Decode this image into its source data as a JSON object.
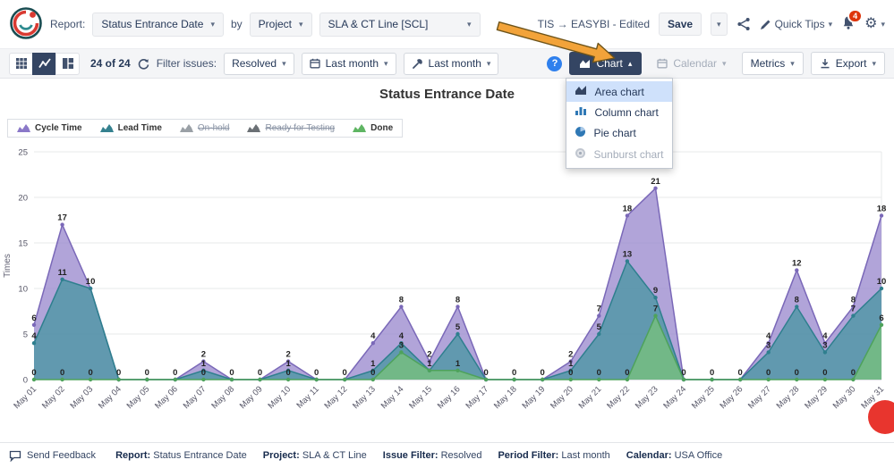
{
  "header": {
    "report_label": "Report:",
    "report_value": "Status Entrance Date",
    "by_label": "by",
    "dimension_value": "Project",
    "project_value": "SLA & CT Line [SCL]",
    "workspace_title": "TIS → EASYBI - Edited",
    "save_label": "Save",
    "quick_tips_label": "Quick Tips",
    "notification_count": "4"
  },
  "toolbar": {
    "issues_count": "24 of 24",
    "filter_label": "Filter issues:",
    "filter_value": "Resolved",
    "period_value": "Last month",
    "time_value": "Last month",
    "help_label": "?",
    "chart_label": "Chart",
    "calendar_label": "Calendar",
    "metrics_label": "Metrics",
    "export_label": "Export"
  },
  "chart_menu": {
    "items": [
      {
        "label": "Area chart",
        "icon": "area-chart-icon",
        "selected": true,
        "disabled": false
      },
      {
        "label": "Column chart",
        "icon": "column-chart-icon",
        "selected": false,
        "disabled": false
      },
      {
        "label": "Pie chart",
        "icon": "pie-chart-icon",
        "selected": false,
        "disabled": false
      },
      {
        "label": "Sunburst chart",
        "icon": "sunburst-chart-icon",
        "selected": false,
        "disabled": true
      }
    ]
  },
  "legend": {
    "items": [
      {
        "label": "Cycle Time",
        "color": "#8a78c8",
        "active": true
      },
      {
        "label": "Lead Time",
        "color": "#35818f",
        "active": true
      },
      {
        "label": "On-hold",
        "color": "#9aa0a6",
        "active": false
      },
      {
        "label": "Ready for Testing",
        "color": "#6b7075",
        "active": false
      },
      {
        "label": "Done",
        "color": "#5fb563",
        "active": true
      }
    ]
  },
  "chart_data": {
    "type": "area",
    "title": "Status Entrance Date",
    "xlabel": "",
    "ylabel": "Times",
    "ylim": [
      0,
      25
    ],
    "yticks": [
      0,
      5,
      10,
      15,
      20,
      25
    ],
    "grid": true,
    "legend_position": "top-left",
    "categories": [
      "May 01",
      "May 02",
      "May 03",
      "May 04",
      "May 05",
      "May 06",
      "May 07",
      "May 08",
      "May 09",
      "May 10",
      "May 11",
      "May 12",
      "May 13",
      "May 14",
      "May 15",
      "May 16",
      "May 17",
      "May 18",
      "May 19",
      "May 20",
      "May 21",
      "May 22",
      "May 23",
      "May 24",
      "May 25",
      "May 26",
      "May 27",
      "May 28",
      "May 29",
      "May 30",
      "May 31"
    ],
    "series": [
      {
        "name": "Cycle Time",
        "line": "#7a68b8",
        "fill": "#9b8ace",
        "values": [
          6,
          17,
          10,
          0,
          0,
          0,
          2,
          0,
          0,
          2,
          0,
          0,
          4,
          8,
          2,
          8,
          0,
          0,
          0,
          2,
          7,
          18,
          21,
          0,
          0,
          0,
          4,
          12,
          4,
          8,
          18
        ]
      },
      {
        "name": "Lead Time",
        "line": "#2e7f8e",
        "fill": "#4a96a3",
        "values": [
          4,
          11,
          10,
          0,
          0,
          0,
          1,
          0,
          0,
          1,
          0,
          0,
          1,
          4,
          1,
          5,
          0,
          0,
          0,
          1,
          5,
          13,
          9,
          0,
          0,
          0,
          3,
          8,
          3,
          7,
          10
        ]
      },
      {
        "name": "Done",
        "line": "#4ea25b",
        "fill": "#77c07c",
        "values": [
          0,
          0,
          0,
          0,
          0,
          0,
          0,
          0,
          0,
          0,
          0,
          0,
          0,
          3,
          1,
          1,
          0,
          0,
          0,
          0,
          0,
          0,
          7,
          0,
          0,
          0,
          0,
          0,
          0,
          0,
          6
        ]
      }
    ]
  },
  "annotation": {
    "type": "arrow",
    "color": "#f2a33a"
  },
  "footer": {
    "feedback_label": "Send Feedback",
    "items": [
      {
        "label": "Report:",
        "value": "Status Entrance Date"
      },
      {
        "label": "Project:",
        "value": "SLA & CT Line"
      },
      {
        "label": "Issue Filter:",
        "value": "Resolved"
      },
      {
        "label": "Period Filter:",
        "value": "Last month"
      },
      {
        "label": "Calendar:",
        "value": "USA Office"
      }
    ]
  }
}
